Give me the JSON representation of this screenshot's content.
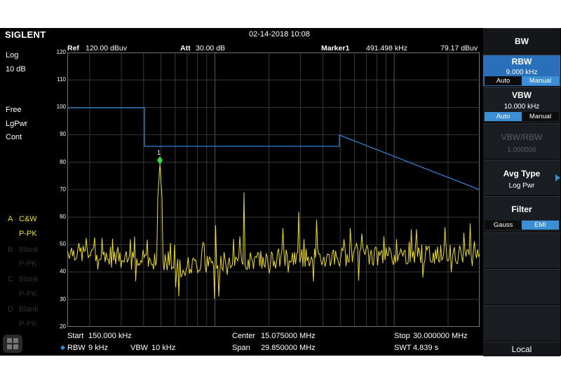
{
  "brand": "SIGLENT",
  "datetime": "02-14-2018 10:08",
  "left": {
    "scale_type": "Log",
    "scale_div": "10 dB",
    "trace_mode": "Free",
    "detector": "LgPwr",
    "sweep": "Cont",
    "traces": [
      {
        "letter": "A",
        "mode": "C&W",
        "detector": "P-PK",
        "active": true
      },
      {
        "letter": "B",
        "mode": "Blank",
        "detector": "P-PK",
        "active": false
      },
      {
        "letter": "C",
        "mode": "Blank",
        "detector": "P-PK",
        "active": false
      },
      {
        "letter": "D",
        "mode": "Blank",
        "detector": "P-PK",
        "active": false
      }
    ]
  },
  "header": {
    "ref_label": "Ref",
    "ref_value": "120.00 dBuv",
    "att_label": "Att",
    "att_value": "30.00 dB",
    "marker_label": "Marker1",
    "marker_freq": "491.498 kHz",
    "marker_level": "79.17 dBuv"
  },
  "yaxis": {
    "ticks": [
      "120",
      "110",
      "100",
      "90",
      "80",
      "70",
      "60",
      "50",
      "40",
      "30",
      "20"
    ]
  },
  "marker": {
    "label": "1"
  },
  "footer": {
    "start_label": "Start",
    "start_value": "150.000 kHz",
    "center_label": "Center",
    "center_value": "15.075000 MHz",
    "stop_label": "Stop",
    "stop_value": "30.000000 MHz",
    "rbw_label": "RBW",
    "rbw_value": "9 kHz",
    "vbw_label": "VBW",
    "vbw_value": "10 kHz",
    "span_label": "Span",
    "span_value": "29.850000 MHz",
    "swt_label": "SWT",
    "swt_value": "4.839 s"
  },
  "panel": {
    "title": "BW",
    "rbw": {
      "title": "RBW",
      "value": "9.000 kHz",
      "auto": "Auto",
      "manual": "Manual"
    },
    "vbw": {
      "title": "VBW",
      "value": "10.000 kHz",
      "auto": "Auto",
      "manual": "Manual"
    },
    "ratio": {
      "title": "VBW/RBW",
      "value": "1.000000"
    },
    "avg": {
      "title": "Avg Type",
      "value": "Log Pwr"
    },
    "filter": {
      "title": "Filter",
      "gauss": "Gauss",
      "emi": "EMI"
    },
    "local": "Local"
  },
  "colors": {
    "trace": "#f0e000",
    "limit": "#2f7fd0",
    "marker": "#33dd33",
    "accent": "#3a8fd6"
  }
}
